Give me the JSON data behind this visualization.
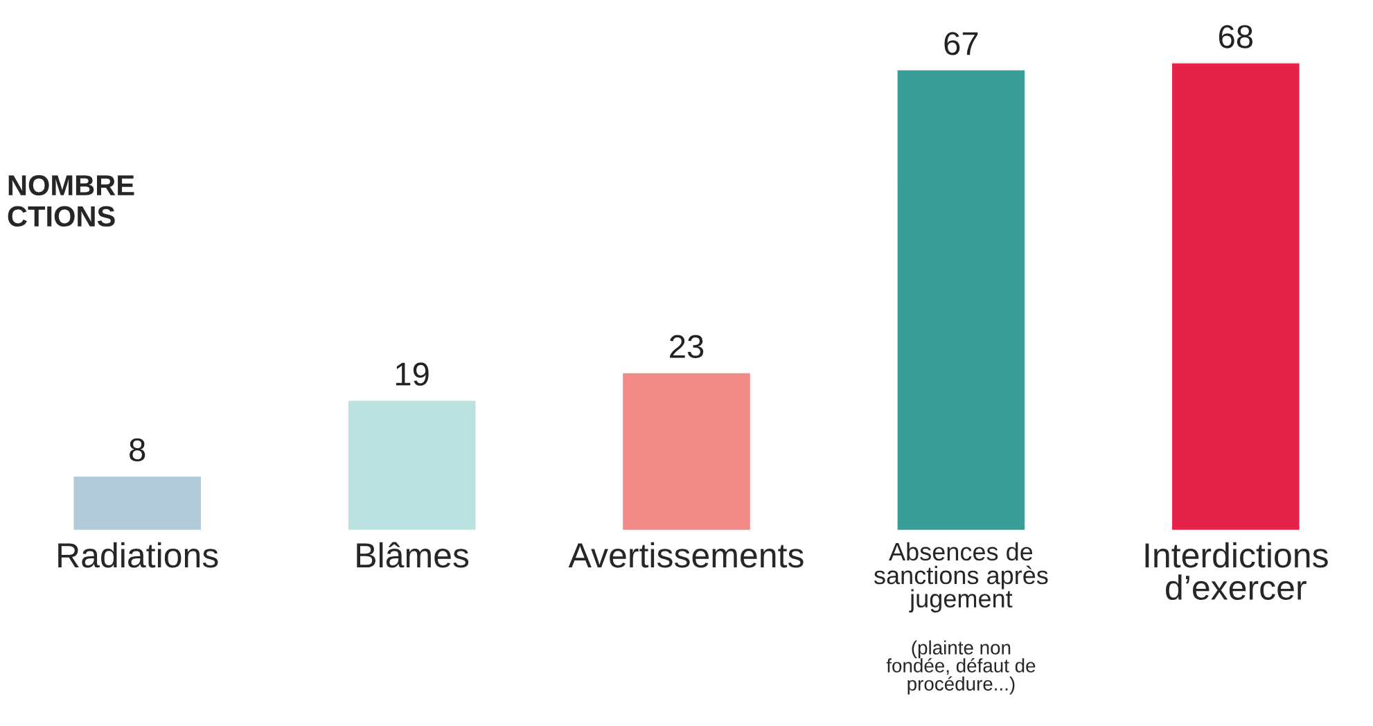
{
  "chart_data": {
    "type": "bar",
    "title": "NOMBRE\nCTIONS",
    "categories": [
      "Radiations",
      "Blâmes",
      "Avertissements",
      "Absences de\nsanctions après\njugement",
      "Interdictions\nd’exercer"
    ],
    "values": [
      8,
      19,
      23,
      67,
      68
    ],
    "colors": [
      "#b3cbd9",
      "#b9e2e0",
      "#f28a87",
      "#3a9e97",
      "#e5234a"
    ],
    "ylim": [
      0,
      68
    ],
    "data_labels": true,
    "annotations": [
      "(plainte non\nfondée, défaut de\nprocédure...)"
    ]
  }
}
